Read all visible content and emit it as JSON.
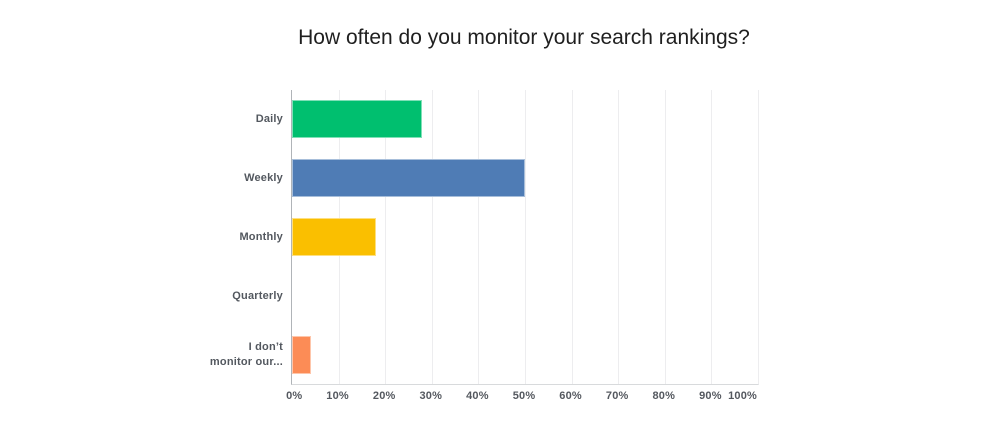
{
  "chart_data": {
    "type": "bar",
    "orientation": "horizontal",
    "title": "How often do you monitor your search rankings?",
    "categories": [
      "Daily",
      "Weekly",
      "Monthly",
      "Quarterly",
      "I don’t monitor our..."
    ],
    "values": [
      28,
      50,
      18,
      0,
      4
    ],
    "bars": [
      {
        "label": "Daily",
        "value": 28,
        "color": "#00BF6F"
      },
      {
        "label": "Weekly",
        "value": 50,
        "color": "#4F7CB5"
      },
      {
        "label": "Monthly",
        "value": 18,
        "color": "#FABF00"
      },
      {
        "label": "Quarterly",
        "value": 0,
        "color": null
      },
      {
        "label": "I don’t monitor our...",
        "value": 4,
        "color": "#FC8C56"
      }
    ],
    "xlabel": "",
    "ylabel": "",
    "xticks": [
      "0%",
      "10%",
      "20%",
      "30%",
      "40%",
      "50%",
      "60%",
      "70%",
      "80%",
      "90%",
      "100%"
    ],
    "xlim": [
      0,
      100
    ],
    "grid": "vertical",
    "legend": false,
    "colors": {
      "background": "#FFFFFF",
      "title_text": "#1F1F1F",
      "label_text": "#53585F",
      "axis_line": "#B0B4B8",
      "gridline": "#EDEDEF"
    }
  }
}
